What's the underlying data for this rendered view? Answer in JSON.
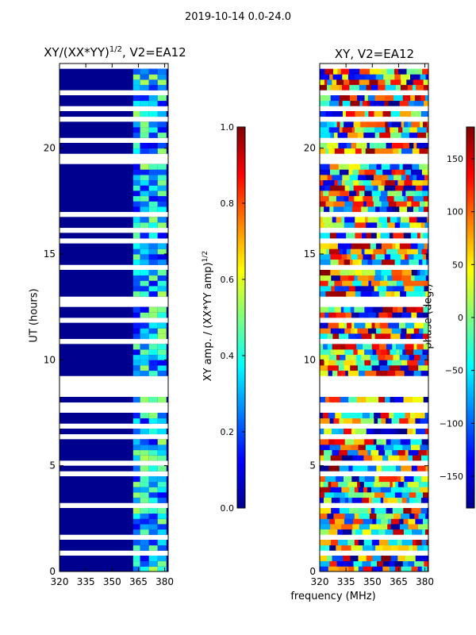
{
  "chart_data": [
    {
      "type": "heatmap",
      "title": "XY/(XX*YY)",
      "title_sup": "1/2",
      "title_suffix": ", V2=EA12",
      "ylabel": "UT (hours)",
      "xlabel": "",
      "xticks": [
        "320",
        "335",
        "350",
        "365",
        "380"
      ],
      "yticks": [
        "0",
        "5",
        "10",
        "15",
        "20"
      ],
      "xlim": [
        320,
        382
      ],
      "ylim": [
        0,
        24
      ],
      "colormap": "jet",
      "colorbar": {
        "label": "XY amp. / (XX*YY amp)",
        "label_sup": "1/2",
        "ticks": [
          "0.0",
          "0.2",
          "0.4",
          "0.6",
          "0.8",
          "1.0"
        ],
        "range": [
          0,
          1
        ]
      },
      "notes": "Mostly near 0 (dark blue) with bright bands near 362-381 MHz; many blank rows where data is flagged."
    },
    {
      "type": "heatmap",
      "title": "XY, V2=EA12",
      "ylabel": "",
      "xticks": [
        "320",
        "335",
        "350",
        "365",
        "380"
      ],
      "yticks": [
        "0",
        "5",
        "10",
        "15",
        "20"
      ],
      "xlim": [
        320,
        382
      ],
      "ylim": [
        0,
        24
      ],
      "colormap": "jet",
      "colorbar": {
        "label": "phase (deg.)",
        "ticks": [
          "150",
          "100",
          "50",
          "0",
          "−50",
          "−100",
          "−150"
        ],
        "range": [
          -180,
          180
        ]
      },
      "notes": "Phase varies widely across all colors; blank rows where data is flagged."
    }
  ],
  "header": {
    "date_range": "2019-10-14 0.0-24.0"
  },
  "shared_xlabel": "frequency (MHz)"
}
